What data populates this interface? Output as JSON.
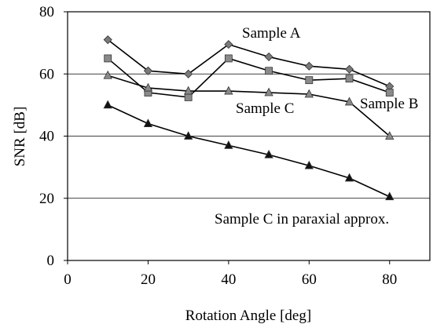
{
  "chart_data": {
    "type": "line",
    "title": "",
    "xlabel": "Rotation Angle [deg]",
    "ylabel": "SNR [dB]",
    "xlim": [
      0,
      90
    ],
    "ylim": [
      0,
      80
    ],
    "x_ticks": [
      0,
      20,
      40,
      60,
      80
    ],
    "y_ticks": [
      0,
      20,
      40,
      60,
      80
    ],
    "grid": "horizontal",
    "x": [
      10,
      20,
      30,
      40,
      50,
      60,
      70,
      80
    ],
    "series": [
      {
        "name": "Sample A",
        "marker": "diamond",
        "marker_color": "#7a7a7a",
        "values": [
          71.0,
          61.0,
          60.0,
          69.5,
          65.5,
          62.5,
          61.5,
          56.0
        ]
      },
      {
        "name": "Sample B",
        "marker": "square",
        "marker_color": "#8a8a8a",
        "values": [
          65.0,
          54.0,
          52.5,
          65.0,
          61.0,
          58.0,
          58.5,
          54.0
        ]
      },
      {
        "name": "Sample C",
        "marker": "triangle",
        "marker_color": "#8a8a8a",
        "values": [
          59.5,
          55.5,
          54.5,
          54.5,
          54.0,
          53.5,
          51.0,
          40.0
        ]
      },
      {
        "name": "Sample C in paraxial approx.",
        "marker": "triangle",
        "marker_color": "#111111",
        "values": [
          50.0,
          44.0,
          40.0,
          37.0,
          34.0,
          30.5,
          26.5,
          20.5
        ]
      }
    ]
  }
}
